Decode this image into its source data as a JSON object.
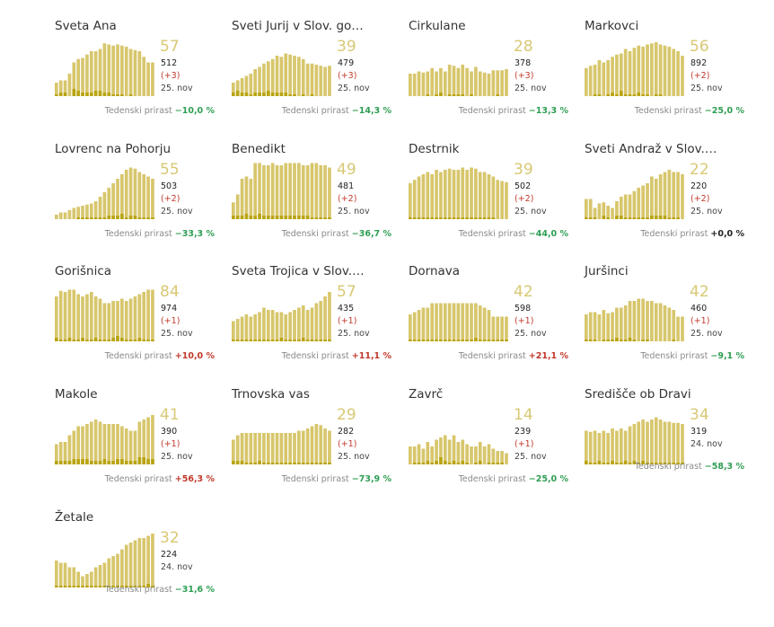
{
  "growth_label": "Tedenski prirast",
  "colors": {
    "bar": "#d7c66c",
    "bar_daily": "#b9a412",
    "avg": "#d8c874",
    "negative": "#2e9e52",
    "positive": "#c0392b"
  },
  "chart_data": [
    {
      "type": "bar",
      "name": "Sveta Ana",
      "avg": "57",
      "total": "512",
      "delta": "(+3)",
      "date": "25. nov",
      "growth": "−10,0 %",
      "trend": "neg",
      "values": [
        12,
        14,
        14,
        20,
        30,
        33,
        34,
        37,
        40,
        40,
        42,
        47,
        46,
        45,
        46,
        45,
        44,
        42,
        41,
        40,
        35,
        30,
        30
      ],
      "daily": [
        1,
        2,
        2,
        0,
        4,
        3,
        2,
        2,
        2,
        3,
        3,
        2,
        2,
        1,
        1,
        1,
        0,
        1,
        0,
        0,
        0,
        0,
        0
      ]
    },
    {
      "type": "bar",
      "name": "Sveti Jurij v Slov. go…",
      "avg": "39",
      "total": "479",
      "delta": "(+3)",
      "date": "25. nov",
      "growth": "−14,3 %",
      "trend": "neg",
      "values": [
        12,
        14,
        16,
        18,
        20,
        24,
        26,
        29,
        31,
        33,
        36,
        35,
        38,
        37,
        36,
        35,
        33,
        29,
        29,
        28,
        27,
        26,
        27
      ],
      "daily": [
        2,
        3,
        2,
        2,
        1,
        2,
        2,
        2,
        3,
        2,
        2,
        2,
        2,
        1,
        1,
        0,
        1,
        0,
        1,
        0,
        0,
        0,
        0
      ]
    },
    {
      "type": "bar",
      "name": "Cirkulane",
      "avg": "28",
      "total": "378",
      "delta": "(+3)",
      "date": "25. nov",
      "growth": "−13,3 %",
      "trend": "neg",
      "values": [
        20,
        20,
        22,
        21,
        22,
        25,
        22,
        25,
        22,
        28,
        27,
        25,
        28,
        25,
        22,
        26,
        22,
        21,
        20,
        23,
        23,
        23,
        24
      ],
      "daily": [
        0,
        0,
        0,
        0,
        1,
        0,
        1,
        2,
        0,
        1,
        1,
        1,
        1,
        0,
        1,
        0,
        0,
        0,
        0,
        0,
        1,
        0,
        0
      ]
    },
    {
      "type": "bar",
      "name": "Markovci",
      "avg": "56",
      "total": "892",
      "delta": "(+2)",
      "date": "25. nov",
      "growth": "−25,0 %",
      "trend": "neg",
      "values": [
        25,
        27,
        28,
        32,
        30,
        32,
        35,
        37,
        38,
        42,
        40,
        43,
        45,
        44,
        46,
        47,
        48,
        46,
        45,
        44,
        42,
        40,
        36
      ],
      "daily": [
        0,
        0,
        1,
        1,
        0,
        1,
        2,
        1,
        3,
        1,
        1,
        1,
        2,
        1,
        1,
        0,
        1,
        1,
        0,
        0,
        0,
        0,
        0
      ]
    },
    {
      "type": "bar",
      "name": "Lovrenc na Pohorju",
      "avg": "55",
      "total": "503",
      "delta": "(+2)",
      "date": "25. nov",
      "growth": "−33,3 %",
      "trend": "neg",
      "values": [
        4,
        6,
        6,
        8,
        10,
        11,
        12,
        13,
        14,
        16,
        20,
        24,
        28,
        32,
        36,
        40,
        44,
        46,
        45,
        42,
        40,
        38,
        36
      ],
      "daily": [
        0,
        0,
        0,
        0,
        0,
        1,
        1,
        1,
        1,
        1,
        1,
        1,
        2,
        2,
        2,
        3,
        1,
        2,
        2,
        1,
        1,
        1,
        1
      ]
    },
    {
      "type": "bar",
      "name": "Benedikt",
      "avg": "49",
      "total": "481",
      "delta": "(+2)",
      "date": "25. nov",
      "growth": "−36,7 %",
      "trend": "neg",
      "values": [
        15,
        22,
        36,
        38,
        36,
        50,
        50,
        48,
        48,
        50,
        48,
        48,
        50,
        50,
        50,
        50,
        48,
        48,
        50,
        50,
        48,
        48,
        46
      ],
      "daily": [
        2,
        2,
        2,
        3,
        2,
        2,
        3,
        2,
        2,
        2,
        2,
        2,
        2,
        2,
        2,
        2,
        2,
        2,
        1,
        1,
        1,
        1,
        1
      ]
    },
    {
      "type": "bar",
      "name": "Destrnik",
      "avg": "39",
      "total": "502",
      "delta": "(+2)",
      "date": "25. nov",
      "growth": "−44,0 %",
      "trend": "neg",
      "values": [
        32,
        35,
        38,
        40,
        42,
        40,
        44,
        42,
        44,
        45,
        44,
        44,
        46,
        44,
        46,
        45,
        42,
        42,
        40,
        38,
        35,
        34,
        33
      ],
      "daily": [
        1,
        1,
        1,
        1,
        1,
        1,
        1,
        1,
        1,
        1,
        1,
        1,
        1,
        1,
        1,
        1,
        1,
        1,
        1,
        1,
        0,
        0,
        0
      ]
    },
    {
      "type": "bar",
      "name": "Sveti Andraž v Slov.…",
      "avg": "22",
      "total": "220",
      "delta": "(+2)",
      "date": "25. nov",
      "growth": "+0,0 %",
      "trend": "zero",
      "values": [
        18,
        18,
        10,
        14,
        15,
        12,
        10,
        16,
        20,
        22,
        22,
        25,
        28,
        30,
        32,
        38,
        36,
        40,
        42,
        44,
        42,
        42,
        40
      ],
      "daily": [
        1,
        1,
        1,
        0,
        2,
        1,
        0,
        2,
        2,
        1,
        1,
        1,
        1,
        1,
        1,
        2,
        2,
        2,
        2,
        1,
        1,
        1,
        0
      ]
    },
    {
      "type": "bar",
      "name": "Gorišnica",
      "avg": "84",
      "total": "974",
      "delta": "(+1)",
      "date": "25. nov",
      "growth": "+10,0 %",
      "trend": "pos",
      "values": [
        40,
        45,
        44,
        46,
        46,
        42,
        40,
        42,
        44,
        40,
        38,
        34,
        34,
        36,
        36,
        38,
        36,
        38,
        40,
        42,
        44,
        46,
        46
      ],
      "daily": [
        2,
        1,
        1,
        2,
        1,
        1,
        2,
        1,
        1,
        2,
        1,
        1,
        1,
        2,
        3,
        2,
        1,
        1,
        1,
        2,
        1,
        1,
        1
      ]
    },
    {
      "type": "bar",
      "name": "Sveta Trojica v Slov.…",
      "avg": "57",
      "total": "435",
      "delta": "(+1)",
      "date": "25. nov",
      "growth": "+11,1 %",
      "trend": "pos",
      "values": [
        18,
        20,
        22,
        24,
        22,
        24,
        26,
        30,
        28,
        28,
        26,
        26,
        24,
        26,
        28,
        30,
        32,
        28,
        30,
        34,
        36,
        40,
        44
      ],
      "daily": [
        1,
        1,
        1,
        1,
        1,
        1,
        1,
        1,
        1,
        1,
        1,
        2,
        1,
        1,
        1,
        1,
        2,
        1,
        1,
        1,
        1,
        1,
        1
      ]
    },
    {
      "type": "bar",
      "name": "Dornava",
      "avg": "42",
      "total": "598",
      "delta": "(+1)",
      "date": "25. nov",
      "growth": "+21,1 %",
      "trend": "pos",
      "values": [
        24,
        26,
        28,
        30,
        30,
        34,
        34,
        34,
        34,
        34,
        34,
        34,
        34,
        34,
        34,
        34,
        32,
        30,
        28,
        22,
        22,
        22,
        22
      ],
      "daily": [
        1,
        1,
        1,
        1,
        1,
        1,
        1,
        1,
        1,
        1,
        1,
        1,
        1,
        1,
        1,
        2,
        1,
        1,
        1,
        1,
        1,
        1,
        1
      ]
    },
    {
      "type": "bar",
      "name": "Juršinci",
      "avg": "42",
      "total": "460",
      "delta": "(+1)",
      "date": "25. nov",
      "growth": "−9,1 %",
      "trend": "neg",
      "values": [
        24,
        26,
        26,
        24,
        28,
        25,
        26,
        30,
        30,
        32,
        36,
        36,
        38,
        38,
        36,
        36,
        34,
        34,
        32,
        30,
        28,
        22,
        22
      ],
      "daily": [
        1,
        1,
        1,
        0,
        1,
        1,
        1,
        2,
        1,
        1,
        2,
        1,
        0,
        1,
        1,
        0,
        0,
        0,
        0,
        0,
        1,
        0,
        0
      ]
    },
    {
      "type": "bar",
      "name": "Makole",
      "avg": "41",
      "total": "390",
      "delta": "(+1)",
      "date": "25. nov",
      "growth": "+56,3 %",
      "trend": "pos",
      "values": [
        18,
        20,
        20,
        26,
        30,
        34,
        34,
        36,
        38,
        40,
        38,
        36,
        36,
        36,
        36,
        34,
        32,
        30,
        30,
        38,
        40,
        42,
        44
      ],
      "daily": [
        2,
        2,
        2,
        2,
        3,
        3,
        3,
        3,
        2,
        2,
        2,
        3,
        2,
        2,
        3,
        3,
        2,
        2,
        2,
        4,
        4,
        3,
        3
      ]
    },
    {
      "type": "bar",
      "name": "Trnovska vas",
      "avg": "29",
      "total": "282",
      "delta": "(+1)",
      "date": "25. nov",
      "growth": "−73,9 %",
      "trend": "neg",
      "values": [
        22,
        26,
        28,
        28,
        28,
        28,
        28,
        28,
        28,
        28,
        28,
        28,
        28,
        28,
        28,
        30,
        30,
        32,
        34,
        36,
        35,
        32,
        30
      ],
      "daily": [
        2,
        2,
        2,
        1,
        1,
        1,
        2,
        1,
        1,
        1,
        1,
        1,
        1,
        1,
        1,
        1,
        1,
        1,
        1,
        1,
        1,
        1,
        1
      ]
    },
    {
      "type": "bar",
      "name": "Zavrč",
      "avg": "14",
      "total": "239",
      "delta": "(+1)",
      "date": "25. nov",
      "growth": "−25,0 %",
      "trend": "neg",
      "values": [
        16,
        16,
        18,
        14,
        20,
        16,
        22,
        24,
        26,
        22,
        26,
        20,
        22,
        18,
        16,
        16,
        20,
        16,
        18,
        14,
        12,
        12,
        10
      ],
      "daily": [
        0,
        1,
        1,
        1,
        2,
        1,
        2,
        4,
        2,
        1,
        2,
        1,
        2,
        1,
        0,
        1,
        2,
        0,
        1,
        1,
        1,
        1,
        0
      ]
    },
    {
      "type": "bar",
      "name": "Središče ob Dravi",
      "avg": "34",
      "total": "319",
      "delta": "",
      "date": "24. nov",
      "growth": "−58,3 %",
      "trend": "neg",
      "values": [
        30,
        29,
        30,
        28,
        30,
        28,
        32,
        30,
        32,
        30,
        34,
        36,
        38,
        40,
        38,
        40,
        42,
        40,
        38,
        38,
        37,
        37,
        36
      ],
      "daily": [
        2,
        1,
        1,
        2,
        1,
        1,
        2,
        1,
        1,
        2,
        1,
        2,
        1,
        2,
        1,
        1,
        1,
        1,
        1,
        1,
        1,
        1,
        1
      ]
    },
    {
      "type": "bar",
      "name": "Žetale",
      "avg": "32",
      "total": "224",
      "delta": "",
      "date": "24. nov",
      "growth": "−31,6 %",
      "trend": "neg",
      "values": [
        24,
        22,
        22,
        18,
        18,
        14,
        10,
        12,
        14,
        18,
        20,
        22,
        26,
        28,
        30,
        34,
        38,
        40,
        42,
        44,
        44,
        46,
        48
      ],
      "daily": [
        1,
        1,
        1,
        1,
        1,
        1,
        1,
        1,
        1,
        1,
        1,
        1,
        1,
        1,
        1,
        1,
        1,
        1,
        1,
        1,
        1,
        2,
        1
      ]
    }
  ]
}
